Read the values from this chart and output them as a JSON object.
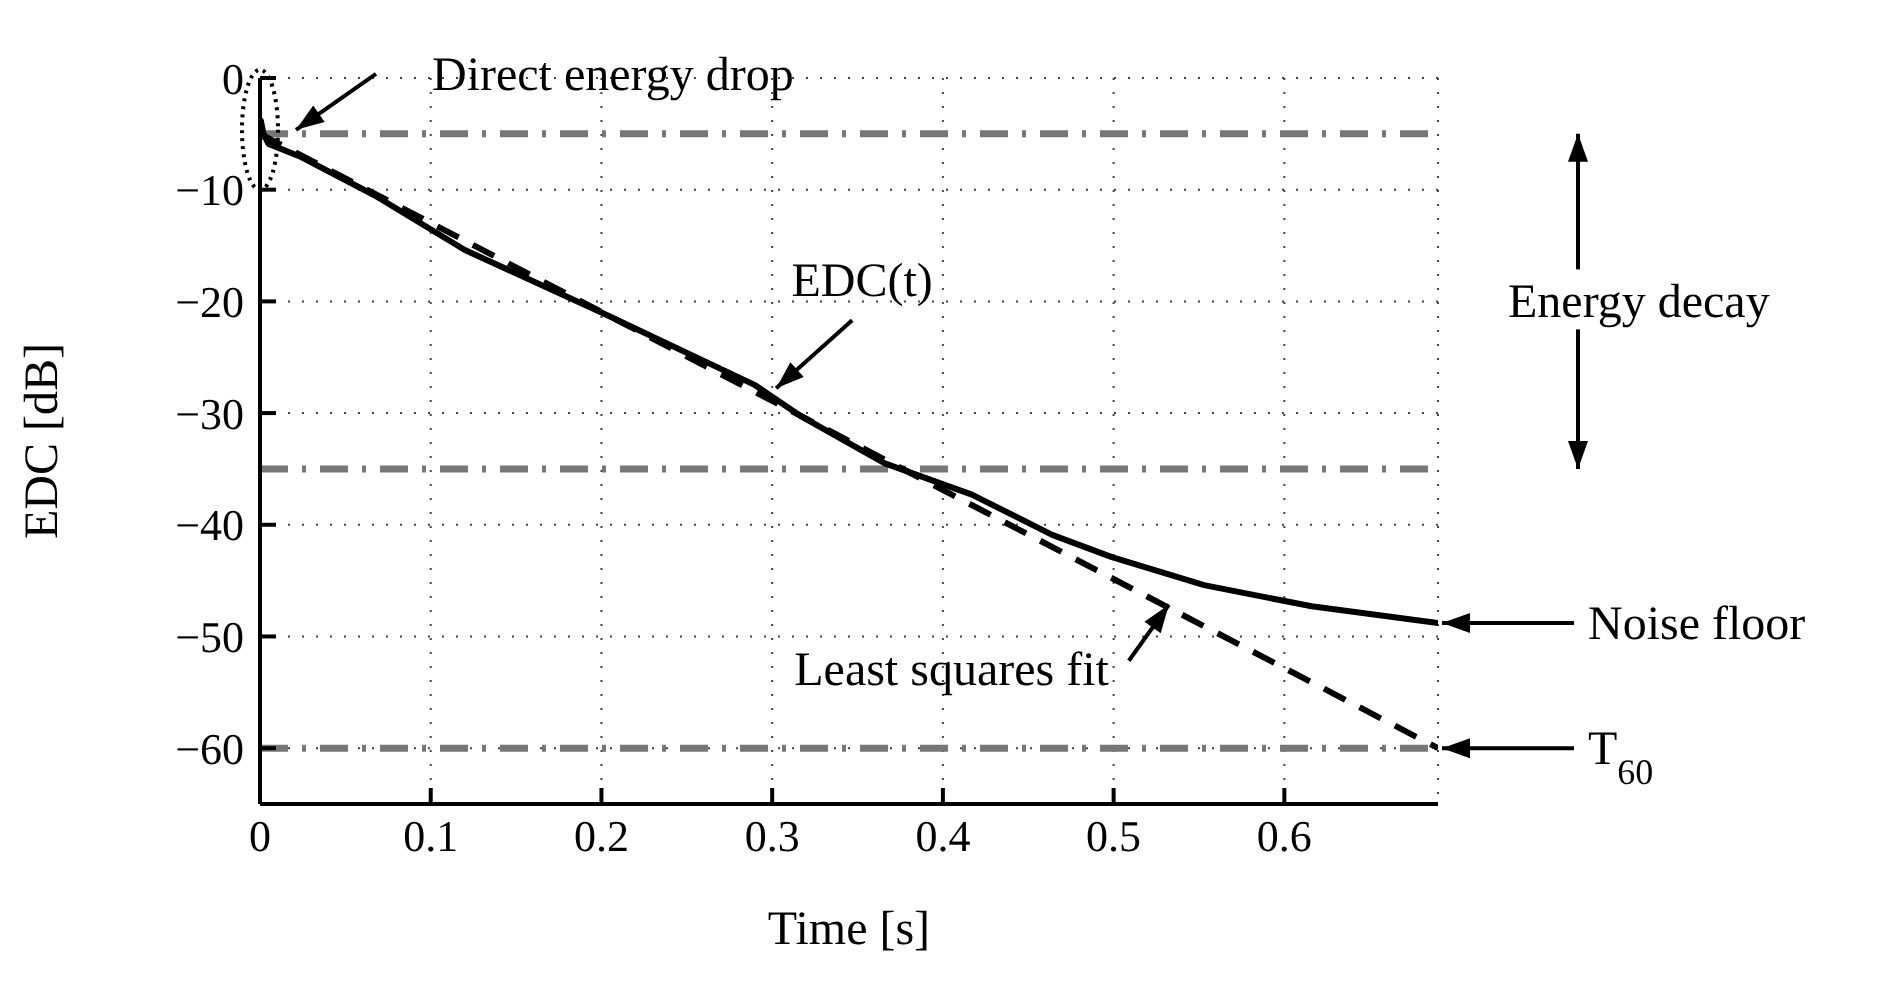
{
  "chart_data": {
    "type": "line",
    "xlabel": "Time [s]",
    "ylabel": "EDC [dB]",
    "xlim": [
      0,
      0.69
    ],
    "xticks": [
      0,
      0.1,
      0.2,
      0.3,
      0.4,
      0.5,
      0.6
    ],
    "ylim": [
      -65,
      0
    ],
    "yticks": [
      0,
      -10,
      -20,
      -30,
      -40,
      -50,
      -60
    ],
    "grid": true,
    "line_style": "solid",
    "marker": "none",
    "series": [
      {
        "color": "#000000",
        "x": [
          0,
          0.0005,
          0.002,
          0.005,
          0.023,
          0.067,
          0.12,
          0.2,
          0.29,
          0.316,
          0.366,
          0.417,
          0.464,
          0.499,
          0.553,
          0.616,
          0.69
        ],
        "values": [
          -5.5,
          -3.8,
          -5,
          -5.9,
          -7,
          -10.5,
          -15.4,
          -21,
          -27.5,
          -30.2,
          -34.5,
          -37.3,
          -40.9,
          -42.9,
          -45.4,
          -47.3,
          -48.8
        ]
      },
      {
        "color": "#000000",
        "line_style": "dashed",
        "x": [
          0,
          0.69
        ],
        "values": [
          -5,
          -60
        ]
      }
    ],
    "ref_lines": [
      {
        "axis": "y",
        "value": -5,
        "color": "#777777",
        "line_style": "dashdot"
      },
      {
        "axis": "y",
        "value": -35,
        "color": "#777777",
        "line_style": "dashdot"
      },
      {
        "axis": "y",
        "value": -60,
        "color": "#777777",
        "line_style": "dashdot"
      }
    ],
    "annotations": [
      "Direct energy drop",
      {
        "text": "EDC(t)",
        "x": 0.3,
        "y": -28.5
      },
      "Energy decay",
      {
        "text": "Least squares fit",
        "x": 0.53,
        "y": -46.8
      },
      "Noise floor",
      "T$_{60}$"
    ]
  }
}
